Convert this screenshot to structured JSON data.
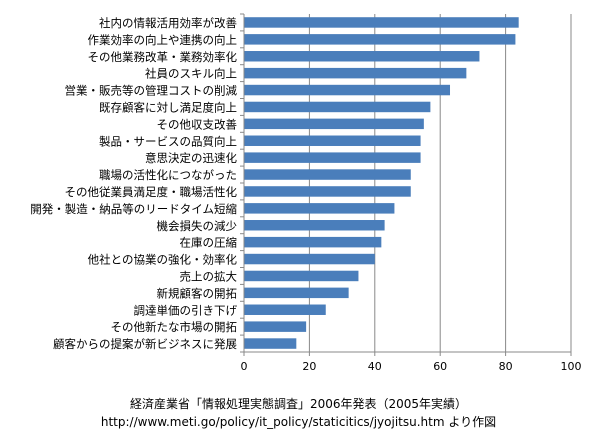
{
  "chart_data": {
    "type": "bar",
    "orientation": "horizontal",
    "categories": [
      "社内の情報活用効率が改善",
      "作業効率の向上や連携の向上",
      "その他業務改革・業務効率化",
      "社員のスキル向上",
      "営業・販売等の管理コストの削減",
      "既存顧客に対し満足度向上",
      "その他収支改善",
      "製品・サービスの品質向上",
      "意思決定の迅速化",
      "職場の活性化につながった",
      "その他従業員満足度・職場活性化",
      "開発・製造・納品等のリードタイム短縮",
      "機会損失の減少",
      "在庫の圧縮",
      "他社との協業の強化・効率化",
      "売上の拡大",
      "新規顧客の開拓",
      "調達単価の引き下げ",
      "その他新たな市場の開拓",
      "顧客からの提案が新ビジネスに発展"
    ],
    "values": [
      84,
      83,
      72,
      68,
      63,
      57,
      55,
      54,
      54,
      51,
      51,
      46,
      43,
      42,
      40,
      35,
      32,
      25,
      19,
      16
    ],
    "xlim": [
      0,
      100
    ],
    "xticks": [
      "0",
      "20",
      "40",
      "60",
      "80",
      "100"
    ],
    "grid": "vertical",
    "bar_color": "#4a7ebb",
    "title": "",
    "xlabel": "",
    "ylabel": ""
  },
  "source": {
    "line1": "経済産業省「情報処理実態調査」2006年発表（2005年実績）",
    "line2": "http://www.meti.go/policy/it_policy/staticitics/jyojitsu.htm より作図"
  }
}
